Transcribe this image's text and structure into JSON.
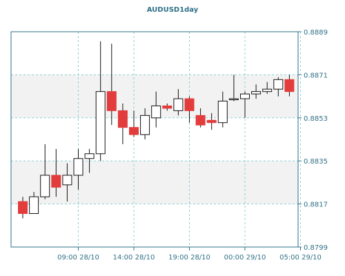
{
  "colors": {
    "frame": "#ffffff",
    "plot_band_light": "#ffffff",
    "plot_band_dark": "#f2f2f2",
    "axis": "#2e6f86",
    "grid": "#8ccfd6",
    "bull_fill": "#ffffff",
    "bear_fill": "#e23c3c",
    "candle_outline": "#111111",
    "text": "#2e6f86"
  },
  "chart_data": {
    "type": "candlestick",
    "title": "AUDUSD1day",
    "x_tick_labels": [
      "09:00 28/10",
      "14:00 28/10",
      "19:00 28/10",
      "00:00 29/10",
      "05:00 29/10"
    ],
    "x_tick_candle_index": [
      5,
      10,
      15,
      20,
      25
    ],
    "y_ticks": [
      "0.8889",
      "0.8871",
      "0.8853",
      "0.8835",
      "0.8817",
      "0.8799"
    ],
    "ylim": [
      0.8799,
      0.8889
    ],
    "grid": true,
    "candles": [
      {
        "open": 0.8818,
        "high": 0.882,
        "low": 0.8811,
        "close": 0.8813
      },
      {
        "open": 0.8813,
        "high": 0.8822,
        "low": 0.8813,
        "close": 0.882
      },
      {
        "open": 0.882,
        "high": 0.8842,
        "low": 0.8819,
        "close": 0.8829
      },
      {
        "open": 0.8829,
        "high": 0.884,
        "low": 0.882,
        "close": 0.8824
      },
      {
        "open": 0.8825,
        "high": 0.8834,
        "low": 0.8818,
        "close": 0.8829
      },
      {
        "open": 0.8829,
        "high": 0.884,
        "low": 0.8823,
        "close": 0.8836
      },
      {
        "open": 0.8836,
        "high": 0.884,
        "low": 0.883,
        "close": 0.8838
      },
      {
        "open": 0.8838,
        "high": 0.8885,
        "low": 0.8835,
        "close": 0.8864
      },
      {
        "open": 0.8864,
        "high": 0.8884,
        "low": 0.885,
        "close": 0.8856
      },
      {
        "open": 0.8856,
        "high": 0.8859,
        "low": 0.8842,
        "close": 0.8849
      },
      {
        "open": 0.8849,
        "high": 0.8856,
        "low": 0.8845,
        "close": 0.8846
      },
      {
        "open": 0.8846,
        "high": 0.8857,
        "low": 0.8844,
        "close": 0.8854
      },
      {
        "open": 0.8853,
        "high": 0.8864,
        "low": 0.8849,
        "close": 0.8858
      },
      {
        "open": 0.8858,
        "high": 0.8859,
        "low": 0.8856,
        "close": 0.8857
      },
      {
        "open": 0.8856,
        "high": 0.8865,
        "low": 0.8854,
        "close": 0.8861
      },
      {
        "open": 0.8861,
        "high": 0.8862,
        "low": 0.8851,
        "close": 0.8856
      },
      {
        "open": 0.8854,
        "high": 0.8857,
        "low": 0.8849,
        "close": 0.885
      },
      {
        "open": 0.8852,
        "high": 0.8855,
        "low": 0.8848,
        "close": 0.8851
      },
      {
        "open": 0.8851,
        "high": 0.8864,
        "low": 0.8849,
        "close": 0.886
      },
      {
        "open": 0.8861,
        "high": 0.8871,
        "low": 0.886,
        "close": 0.8861
      },
      {
        "open": 0.8861,
        "high": 0.8864,
        "low": 0.8853,
        "close": 0.8863
      },
      {
        "open": 0.8863,
        "high": 0.8867,
        "low": 0.8861,
        "close": 0.8864
      },
      {
        "open": 0.8864,
        "high": 0.8868,
        "low": 0.8863,
        "close": 0.8865
      },
      {
        "open": 0.8865,
        "high": 0.887,
        "low": 0.8862,
        "close": 0.8869
      },
      {
        "open": 0.8869,
        "high": 0.8871,
        "low": 0.8862,
        "close": 0.8864
      }
    ]
  }
}
